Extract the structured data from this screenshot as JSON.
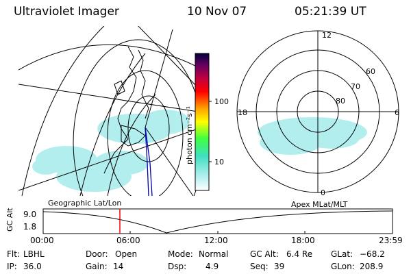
{
  "header": {
    "instrument": "Ultraviolet Imager",
    "date": "10 Nov 07",
    "time": "05:21:39 UT"
  },
  "geo_map": {
    "label": "Geographic Lat/Lon"
  },
  "colorbar": {
    "unit_label": "photon cm⁻²s⁻¹",
    "ticks": [
      "100",
      "10"
    ]
  },
  "polar_map": {
    "label": "Apex MLat/MLT",
    "mlt_labels": [
      "12",
      "18",
      "6",
      "0"
    ],
    "mlat_labels": [
      "60",
      "70",
      "80"
    ]
  },
  "timeline": {
    "axis_title": "GC Alt",
    "y_ticks": [
      "9.0",
      "1.8"
    ],
    "x_ticks": [
      "00:00",
      "06:00",
      "12:00",
      "18:00",
      "23:59"
    ]
  },
  "status": {
    "flt_label": "Flt:",
    "flt_value": "LBHL",
    "ip_label": "IP:",
    "ip_value": "36.0",
    "door_label": "Door:",
    "door_value": "Open",
    "gain_label": "Gain:",
    "gain_value": "14",
    "mode_label": "Mode:",
    "mode_value": "Normal",
    "dsp_label": "Dsp:",
    "dsp_value": "4.9",
    "gcalt_label": "GC Alt:",
    "gcalt_value": "6.4 Re",
    "seq_label": "Seq:",
    "seq_value": "39",
    "glat_label": "GLat:",
    "glat_value": "−68.2",
    "glon_label": "GLon:",
    "glon_value": "208.9"
  },
  "colors": {
    "aurora": "#a6ecec",
    "marker": "#ff0000",
    "orbit": "#0000aa"
  }
}
